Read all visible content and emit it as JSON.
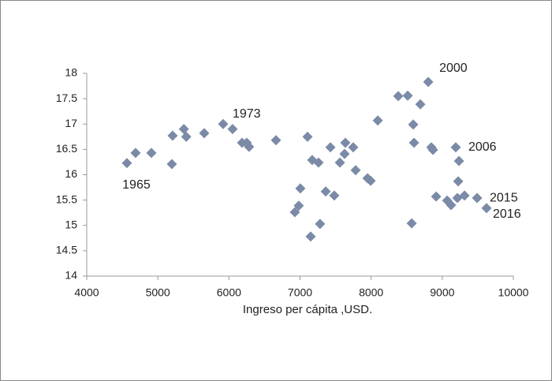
{
  "chart_data": {
    "type": "scatter",
    "x_label": "Ingreso per cápita ,USD.",
    "xlim": [
      4000,
      10000
    ],
    "xticks": [
      4000,
      5000,
      6000,
      7000,
      8000,
      9000,
      10000
    ],
    "ylim": [
      14,
      18
    ],
    "yticks": [
      14,
      14.5,
      15,
      15.5,
      16,
      16.5,
      17,
      17.5,
      18
    ],
    "grid": false,
    "series": [
      {
        "color": "#7b8aa6",
        "x": [
          4565,
          4687,
          4909,
          5197,
          5208,
          5366,
          5399,
          5652,
          5918,
          6051,
          6184,
          6250,
          6283,
          6661,
          6927,
          6982,
          7004,
          7105,
          7149,
          7171,
          7260,
          7281,
          7361,
          7427,
          7481,
          7560,
          7626,
          7637,
          7748,
          7782,
          7949,
          7993,
          8093,
          8381,
          8514,
          8570,
          8592,
          8603,
          8692,
          8803,
          8847,
          8869,
          8914,
          9069,
          9124,
          9213,
          9224,
          9190,
          9235,
          9313,
          9490,
          9623
        ],
        "values": [
          16.23,
          16.43,
          16.43,
          16.21,
          16.77,
          16.9,
          16.75,
          16.82,
          17.0,
          16.9,
          16.63,
          16.63,
          16.55,
          16.68,
          15.26,
          15.39,
          15.73,
          16.75,
          14.78,
          16.29,
          16.24,
          15.03,
          15.67,
          16.54,
          15.59,
          16.24,
          16.41,
          16.63,
          16.54,
          16.09,
          15.93,
          15.88,
          17.07,
          17.55,
          17.56,
          15.04,
          16.99,
          16.63,
          17.39,
          17.83,
          16.54,
          16.49,
          15.57,
          15.49,
          15.4,
          15.54,
          15.87,
          16.54,
          16.27,
          15.59,
          15.54,
          15.34
        ],
        "point_labels": [
          "1965",
          null,
          null,
          null,
          null,
          null,
          null,
          null,
          null,
          "1973",
          null,
          null,
          null,
          null,
          null,
          null,
          null,
          null,
          null,
          null,
          null,
          null,
          null,
          null,
          null,
          null,
          null,
          null,
          null,
          null,
          null,
          null,
          null,
          null,
          null,
          null,
          null,
          null,
          null,
          "2000",
          null,
          null,
          null,
          null,
          null,
          null,
          null,
          "2006",
          null,
          null,
          "2015",
          "2016"
        ]
      }
    ]
  }
}
